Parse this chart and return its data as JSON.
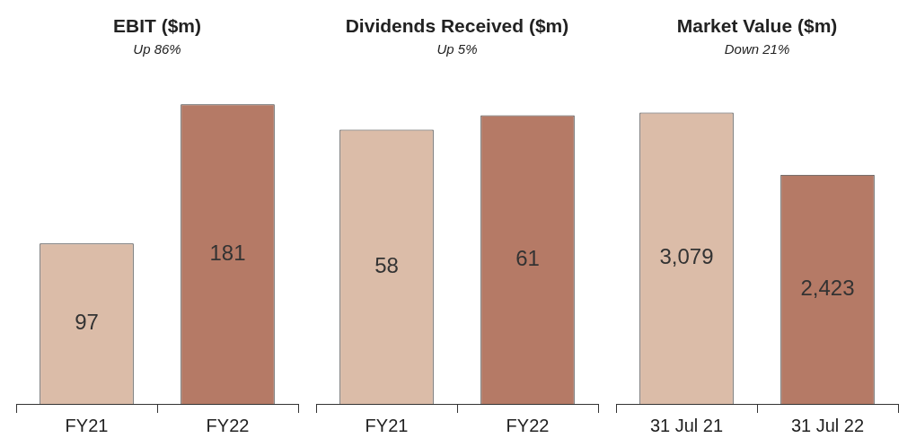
{
  "chart_data": [
    {
      "type": "bar",
      "title": "EBIT ($m)",
      "subtitle": "Up 86%",
      "categories": [
        "FY21",
        "FY22"
      ],
      "values": [
        97,
        181
      ],
      "colors": [
        "#dbbca8",
        "#b57a66"
      ],
      "data_labels": true,
      "tick_labels": "x",
      "grid": false,
      "legend": false
    },
    {
      "type": "bar",
      "title": "Dividends Received ($m)",
      "subtitle": "Up 5%",
      "categories": [
        "FY21",
        "FY22"
      ],
      "values": [
        58,
        61
      ],
      "colors": [
        "#dbbca8",
        "#b57a66"
      ],
      "data_labels": true,
      "tick_labels": "x",
      "grid": false,
      "legend": false
    },
    {
      "type": "bar",
      "title": "Market Value ($m)",
      "subtitle": "Down 21%",
      "categories": [
        "31 Jul 21",
        "31 Jul 22"
      ],
      "values": [
        3079,
        2423
      ],
      "value_labels": [
        "3,079",
        "2,423"
      ],
      "colors": [
        "#dbbca8",
        "#b57a66"
      ],
      "tick_labels": "x",
      "grid": false,
      "legend": false
    }
  ]
}
